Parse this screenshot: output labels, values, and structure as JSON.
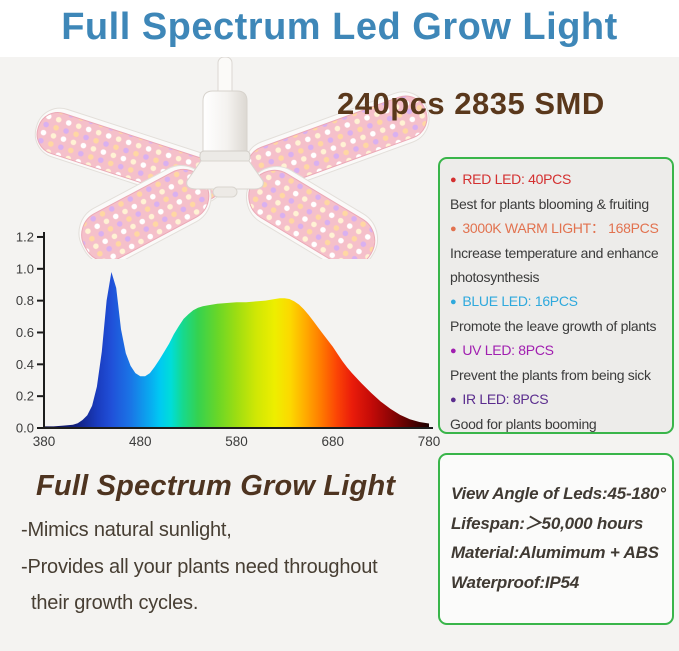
{
  "header": {
    "title": "Full Spectrum Led Grow Light",
    "title_color": "#3e87b8"
  },
  "product": {
    "badge": "240pcs 2835 SMD",
    "badge_color": "#5a381c"
  },
  "led_box": {
    "border_color": "#39b54a",
    "bullet": "●",
    "items": [
      {
        "label": "RED LED: 40PCS",
        "color": "#d43030",
        "desc": "Best for plants blooming & fruiting"
      },
      {
        "label": "3000K WARM LIGHT： 168PCS",
        "color": "#e2724f",
        "desc": "Increase temperature and enhance photosynthesis"
      },
      {
        "label": "BLUE LED: 16PCS",
        "color": "#2fa9dd",
        "desc": "Promote the leave growth of plants"
      },
      {
        "label": "UV LED: 8PCS",
        "color": "#a11fb0",
        "desc": "Prevent the plants from being sick"
      },
      {
        "label": "IR LED: 8PCS",
        "color": "#5b2d8e",
        "desc": "Good for plants booming"
      }
    ]
  },
  "features": {
    "heading": "Full Spectrum Grow Light",
    "heading_color": "#4e3420",
    "lines": [
      "-Mimics natural sunlight,",
      "-Provides all your plants need throughout",
      "their growth cycles."
    ]
  },
  "spec_box": {
    "border_color": "#39b54a",
    "lines": [
      "View Angle of Leds:45-180°",
      "Lifespan:＞50,000 hours",
      "Material:Alumimum + ABS",
      "Waterproof:IP54"
    ]
  },
  "chart_data": {
    "type": "area",
    "title": "",
    "xlabel": "",
    "ylabel": "",
    "grid": false,
    "legend": "none",
    "xlim": [
      380,
      780
    ],
    "ylim": [
      0,
      1.2
    ],
    "xticks": [
      380,
      480,
      580,
      680,
      780
    ],
    "yticks": [
      0,
      0.2,
      0.4,
      0.6,
      0.8,
      1.0,
      1.2
    ],
    "ytick_labels": [
      "0.0",
      "0.2",
      "0.4",
      "0.6",
      "0.8",
      "1.0",
      "1.2"
    ],
    "x": [
      380,
      390,
      400,
      410,
      415,
      420,
      425,
      430,
      435,
      440,
      445,
      450,
      455,
      460,
      465,
      470,
      475,
      480,
      485,
      490,
      495,
      500,
      505,
      510,
      515,
      520,
      525,
      530,
      535,
      540,
      545,
      550,
      560,
      570,
      580,
      590,
      600,
      610,
      620,
      625,
      630,
      635,
      640,
      645,
      650,
      655,
      660,
      665,
      670,
      675,
      680,
      685,
      690,
      695,
      700,
      710,
      720,
      730,
      740,
      750,
      760,
      770,
      780
    ],
    "y": [
      0.01,
      0.01,
      0.015,
      0.02,
      0.03,
      0.05,
      0.08,
      0.14,
      0.26,
      0.48,
      0.8,
      0.98,
      0.88,
      0.62,
      0.47,
      0.39,
      0.345,
      0.325,
      0.325,
      0.345,
      0.385,
      0.43,
      0.48,
      0.53,
      0.59,
      0.64,
      0.685,
      0.715,
      0.74,
      0.755,
      0.765,
      0.77,
      0.78,
      0.785,
      0.79,
      0.79,
      0.795,
      0.8,
      0.81,
      0.815,
      0.815,
      0.81,
      0.795,
      0.775,
      0.745,
      0.71,
      0.67,
      0.63,
      0.59,
      0.55,
      0.51,
      0.465,
      0.42,
      0.38,
      0.345,
      0.28,
      0.22,
      0.165,
      0.12,
      0.082,
      0.055,
      0.038,
      0.028
    ],
    "gradient": [
      {
        "offset": 0.0,
        "color": "#0c0c4a"
      },
      {
        "offset": 0.085,
        "color": "#11207f"
      },
      {
        "offset": 0.14,
        "color": "#1a3cc0"
      },
      {
        "offset": 0.175,
        "color": "#2050d8"
      },
      {
        "offset": 0.225,
        "color": "#1a75e6"
      },
      {
        "offset": 0.275,
        "color": "#09aaf0"
      },
      {
        "offset": 0.3,
        "color": "#00c8f2"
      },
      {
        "offset": 0.33,
        "color": "#00ddd8"
      },
      {
        "offset": 0.36,
        "color": "#16d98f"
      },
      {
        "offset": 0.4,
        "color": "#35d24f"
      },
      {
        "offset": 0.45,
        "color": "#68d628"
      },
      {
        "offset": 0.5,
        "color": "#9ddd12"
      },
      {
        "offset": 0.55,
        "color": "#cfe705"
      },
      {
        "offset": 0.6,
        "color": "#eeee00"
      },
      {
        "offset": 0.64,
        "color": "#fcd800"
      },
      {
        "offset": 0.68,
        "color": "#ffaa00"
      },
      {
        "offset": 0.72,
        "color": "#ff7a00"
      },
      {
        "offset": 0.76,
        "color": "#fb4505"
      },
      {
        "offset": 0.8,
        "color": "#ea1c0a"
      },
      {
        "offset": 0.85,
        "color": "#c40b08"
      },
      {
        "offset": 0.9,
        "color": "#8f0505"
      },
      {
        "offset": 0.95,
        "color": "#550101"
      },
      {
        "offset": 1.0,
        "color": "#1c0000"
      }
    ]
  }
}
